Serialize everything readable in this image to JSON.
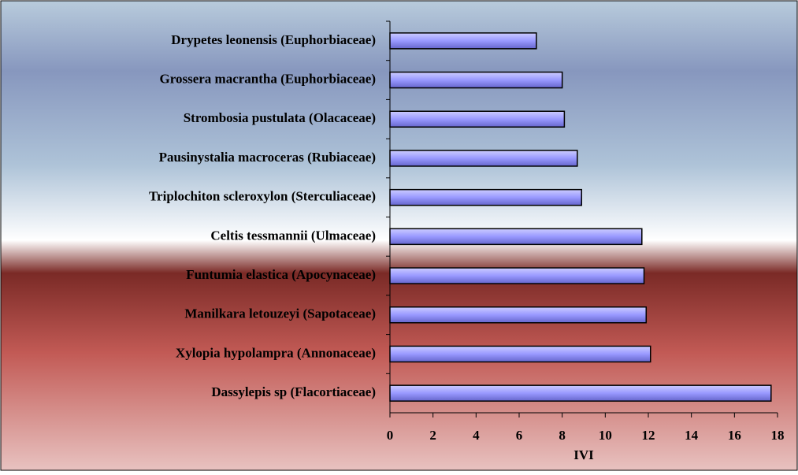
{
  "chart_data": {
    "type": "bar",
    "orientation": "horizontal",
    "xlabel": "IVI",
    "categories": [
      "Drypetes leonensis (Euphorbiaceae)",
      "Grossera macrantha (Euphorbiaceae)",
      "Strombosia pustulata (Olacaceae)",
      "Pausinystalia macroceras (Rubiaceae)",
      "Triplochiton scleroxylon (Sterculiaceae)",
      "Celtis tessmannii (Ulmaceae)",
      "Funtumia elastica (Apocynaceae)",
      "Manilkara letouzeyi (Sapotaceae)",
      "Xylopia hypolampra (Annonaceae)",
      "Dassylepis sp (Flacortiaceae)"
    ],
    "values": [
      6.8,
      8.0,
      8.1,
      8.7,
      8.9,
      11.7,
      11.8,
      11.9,
      12.1,
      17.7
    ],
    "color": "#9999ff",
    "xlim": [
      0,
      18
    ],
    "xticks": [
      0,
      2,
      4,
      6,
      8,
      10,
      12,
      14,
      16,
      18
    ]
  }
}
